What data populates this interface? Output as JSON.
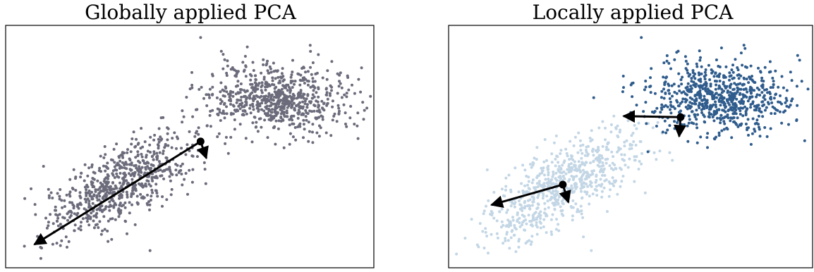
{
  "figure": {
    "panels": [
      {
        "title": "Globally applied PCA"
      },
      {
        "title": "Locally applied PCA"
      }
    ]
  },
  "colors": {
    "global_points": "#6b6b7b",
    "cluster_light": "#c3d6e5",
    "cluster_dark": "#2f5c8c",
    "arrow": "#000000"
  },
  "chart_data": [
    {
      "type": "scatter",
      "title": "Globally applied PCA",
      "xlabel": "",
      "ylabel": "",
      "xlim": [
        -1.5,
        3.4
      ],
      "ylim": [
        -1.5,
        3.0
      ],
      "grid": false,
      "clusters": [
        {
          "center": [
            0.0,
            0.0
          ],
          "cov": [
            [
              0.3,
              0.22
            ],
            [
              0.22,
              0.3
            ]
          ],
          "n": 700
        },
        {
          "center": [
            2.2,
            1.7
          ],
          "cov": [
            [
              0.25,
              0.0
            ],
            [
              0.0,
              0.12
            ]
          ],
          "n": 700
        }
      ],
      "outliers": [
        [
          1.1,
          2.9
        ],
        [
          -1.1,
          -1.25
        ],
        [
          0.4,
          -1.3
        ]
      ],
      "pca": {
        "mean": [
          1.1,
          0.85
        ],
        "components": [
          {
            "to": [
              -1.2,
              -1.18
            ]
          },
          {
            "to": [
              1.18,
              0.52
            ]
          }
        ]
      }
    },
    {
      "type": "scatter",
      "title": "Locally applied PCA",
      "xlabel": "",
      "ylabel": "",
      "xlim": [
        -1.5,
        3.4
      ],
      "ylim": [
        -1.5,
        3.0
      ],
      "grid": false,
      "series": [
        {
          "color_key": "cluster_light",
          "cluster": {
            "center": [
              0.0,
              0.0
            ],
            "cov": [
              [
                0.3,
                0.22
              ],
              [
                0.22,
                0.3
              ]
            ],
            "n": 700
          },
          "outliers": [
            [
              -1.1,
              -1.25
            ],
            [
              0.4,
              -1.3
            ]
          ],
          "pca": {
            "mean": [
              0.0,
              0.0
            ],
            "components": [
              {
                "to": [
                  -1.0,
                  -0.4
                ]
              },
              {
                "to": [
                  0.08,
                  -0.35
                ]
              }
            ]
          }
        },
        {
          "color_key": "cluster_dark",
          "cluster": {
            "center": [
              2.2,
              1.7
            ],
            "cov": [
              [
                0.25,
                0.0
              ],
              [
                0.0,
                0.12
              ]
            ],
            "n": 700
          },
          "outliers": [
            [
              1.1,
              2.9
            ]
          ],
          "pca": {
            "mean": [
              1.65,
              1.33
            ],
            "components": [
              {
                "to": [
                  0.85,
                  1.35
                ]
              },
              {
                "to": [
                  1.63,
                  0.95
                ]
              }
            ]
          }
        }
      ]
    }
  ]
}
